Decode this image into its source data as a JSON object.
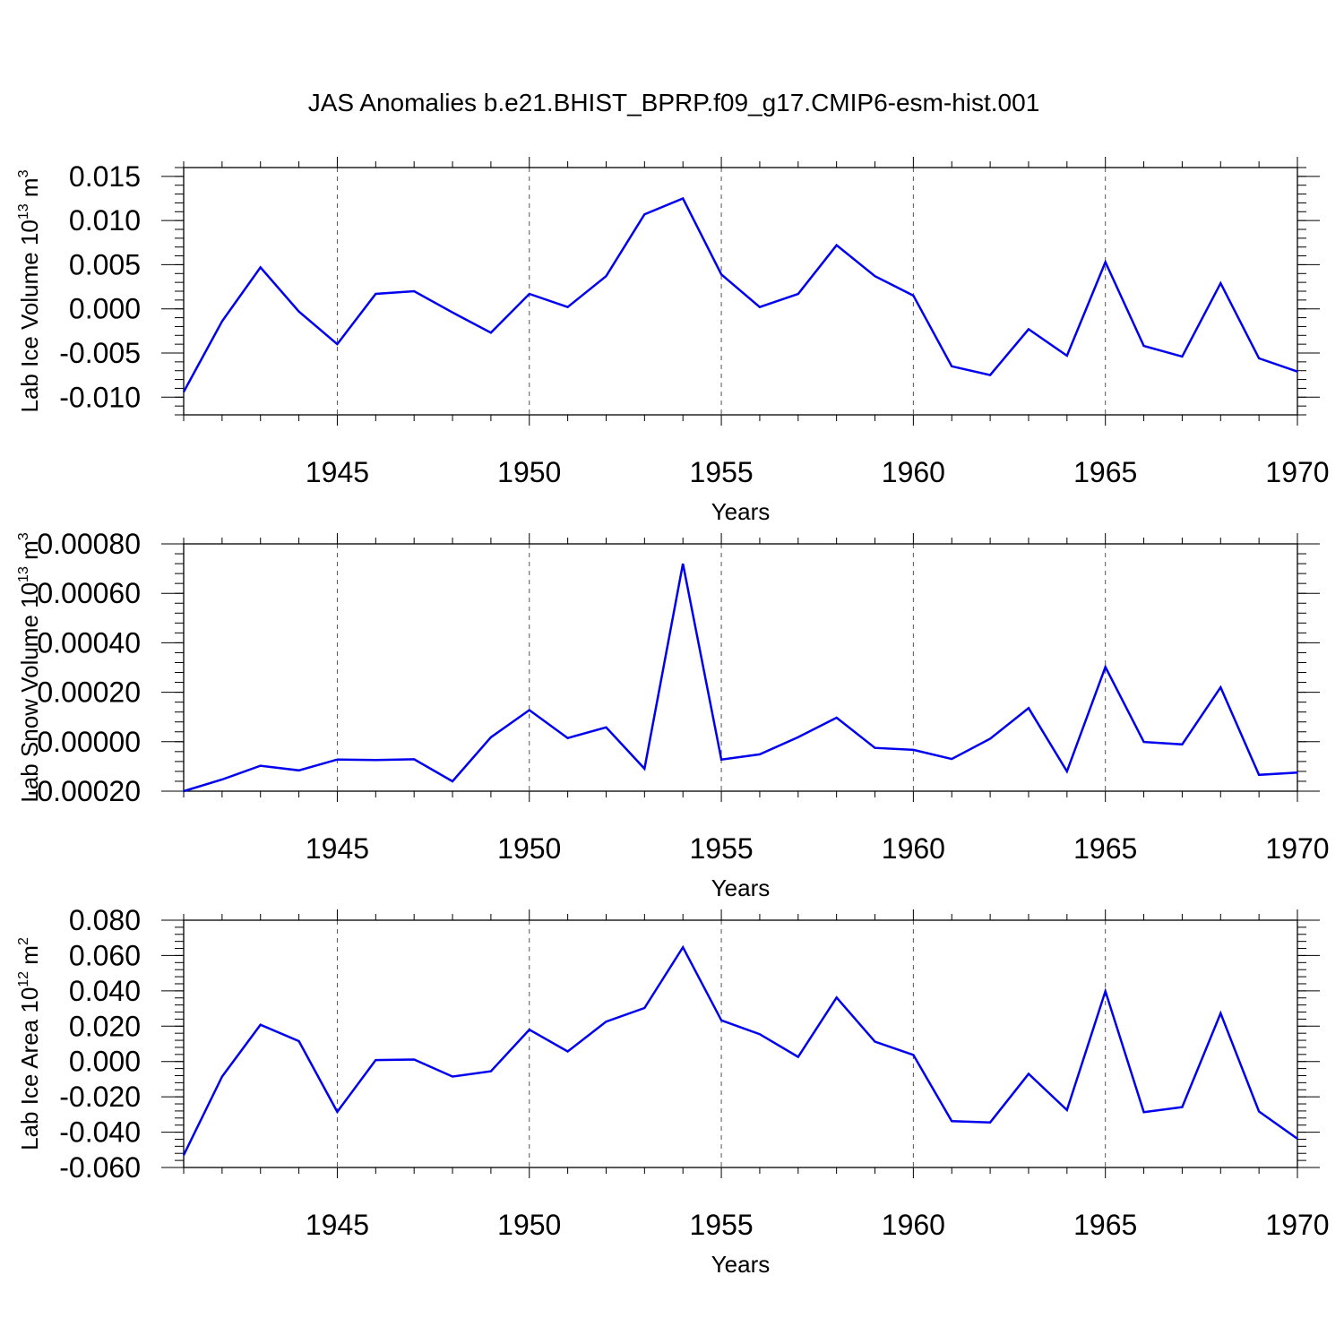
{
  "title": "JAS Anomalies b.e21.BHIST_BPRP.f09_g17.CMIP6-esm-hist.001",
  "colors": {
    "line": "#0000ee",
    "grid": "#555555",
    "axis": "#000000"
  },
  "chart_data": [
    {
      "type": "line",
      "ylabel": {
        "prefix": "Lab Ice Volume 10",
        "exp": "13",
        "unit": " m",
        "unit_exp": "3"
      },
      "xlabel": "Years",
      "xlim": [
        1941,
        1970
      ],
      "ylim": [
        -0.012,
        0.016
      ],
      "yticks": [
        -0.01,
        -0.005,
        0.0,
        0.005,
        0.01,
        0.015
      ],
      "ytick_labels": [
        "-0.010",
        "-0.005",
        "0.000",
        "0.005",
        "0.010",
        "0.015"
      ],
      "yminor_step": 0.001,
      "xticks": [
        1945,
        1950,
        1955,
        1960,
        1965,
        1970
      ],
      "xtick_labels": [
        "1945",
        "1950",
        "1955",
        "1960",
        "1965",
        "1970"
      ],
      "grid": "vertical dashed at major years",
      "x": [
        1941,
        1942,
        1943,
        1944,
        1945,
        1946,
        1947,
        1948,
        1949,
        1950,
        1951,
        1952,
        1953,
        1954,
        1955,
        1956,
        1957,
        1958,
        1959,
        1960,
        1961,
        1962,
        1963,
        1964,
        1965,
        1966,
        1967,
        1968,
        1969,
        1970
      ],
      "values": [
        -0.0094,
        -0.0014,
        0.0047,
        -0.0003,
        -0.004,
        0.0017,
        0.002,
        -0.0004,
        -0.0027,
        0.0017,
        0.0002,
        0.0037,
        0.0107,
        0.0125,
        0.0039,
        0.0002,
        0.0017,
        0.0072,
        0.0037,
        0.0015,
        -0.0065,
        -0.0075,
        -0.0023,
        -0.0053,
        0.0053,
        -0.0042,
        -0.0054,
        0.0029,
        -0.0056,
        -0.0071
      ]
    },
    {
      "type": "line",
      "ylabel": {
        "prefix": "Lab Snow Volume 10",
        "exp": "13",
        "unit": " m",
        "unit_exp": "3"
      },
      "xlabel": "Years",
      "xlim": [
        1941,
        1970
      ],
      "ylim": [
        -0.0002,
        0.0008
      ],
      "yticks": [
        -0.0002,
        0.0,
        0.0002,
        0.0004,
        0.0006,
        0.0008
      ],
      "ytick_labels": [
        "-0.00020",
        "0.00000",
        "0.00020",
        "0.00040",
        "0.00060",
        "0.00080"
      ],
      "yminor_step": 4e-05,
      "xticks": [
        1945,
        1950,
        1955,
        1960,
        1965,
        1970
      ],
      "xtick_labels": [
        "1945",
        "1950",
        "1955",
        "1960",
        "1965",
        "1970"
      ],
      "grid": "vertical dashed at major years",
      "x": [
        1941,
        1942,
        1943,
        1944,
        1945,
        1946,
        1947,
        1948,
        1949,
        1950,
        1951,
        1952,
        1953,
        1954,
        1955,
        1956,
        1957,
        1958,
        1959,
        1960,
        1961,
        1962,
        1963,
        1964,
        1965,
        1966,
        1967,
        1968,
        1969,
        1970
      ],
      "values": [
        -0.0002,
        -0.000153,
        -9.7e-05,
        -0.000116,
        -7.2e-05,
        -7.4e-05,
        -7.1e-05,
        -0.00016,
        1.8e-05,
        0.000128,
        1.5e-05,
        5.8e-05,
        -0.000109,
        0.00072,
        -7.2e-05,
        -5.1e-05,
        1.8e-05,
        9.7e-05,
        -2.5e-05,
        -3.3e-05,
        -7e-05,
        1.2e-05,
        0.000136,
        -0.00012,
        0.000302,
        -1e-06,
        -1.1e-05,
        0.00022,
        -0.000134,
        -0.000125
      ]
    },
    {
      "type": "line",
      "ylabel": {
        "prefix": "Lab Ice Area 10",
        "exp": "12",
        "unit": " m",
        "unit_exp": "2"
      },
      "xlabel": "Years",
      "xlim": [
        1941,
        1970
      ],
      "ylim": [
        -0.06,
        0.08
      ],
      "yticks": [
        -0.06,
        -0.04,
        -0.02,
        0.0,
        0.02,
        0.04,
        0.06,
        0.08
      ],
      "ytick_labels": [
        "-0.060",
        "-0.040",
        "-0.020",
        "0.000",
        "0.020",
        "0.040",
        "0.060",
        "0.080"
      ],
      "yminor_step": 0.004,
      "xticks": [
        1945,
        1950,
        1955,
        1960,
        1965,
        1970
      ],
      "xtick_labels": [
        "1945",
        "1950",
        "1955",
        "1960",
        "1965",
        "1970"
      ],
      "grid": "vertical dashed at major years",
      "x": [
        1941,
        1942,
        1943,
        1944,
        1945,
        1946,
        1947,
        1948,
        1949,
        1950,
        1951,
        1952,
        1953,
        1954,
        1955,
        1956,
        1957,
        1958,
        1959,
        1960,
        1961,
        1962,
        1963,
        1964,
        1965,
        1966,
        1967,
        1968,
        1969,
        1970
      ],
      "values": [
        -0.053,
        -0.0085,
        0.0208,
        0.0115,
        -0.0285,
        0.0008,
        0.0011,
        -0.0085,
        -0.0055,
        0.018,
        0.0057,
        0.0226,
        0.0303,
        0.0647,
        0.0233,
        0.0155,
        0.0026,
        0.0362,
        0.0112,
        0.0037,
        -0.0338,
        -0.0345,
        -0.007,
        -0.0275,
        0.0398,
        -0.0287,
        -0.0258,
        0.0273,
        -0.0283,
        -0.0437
      ]
    }
  ]
}
